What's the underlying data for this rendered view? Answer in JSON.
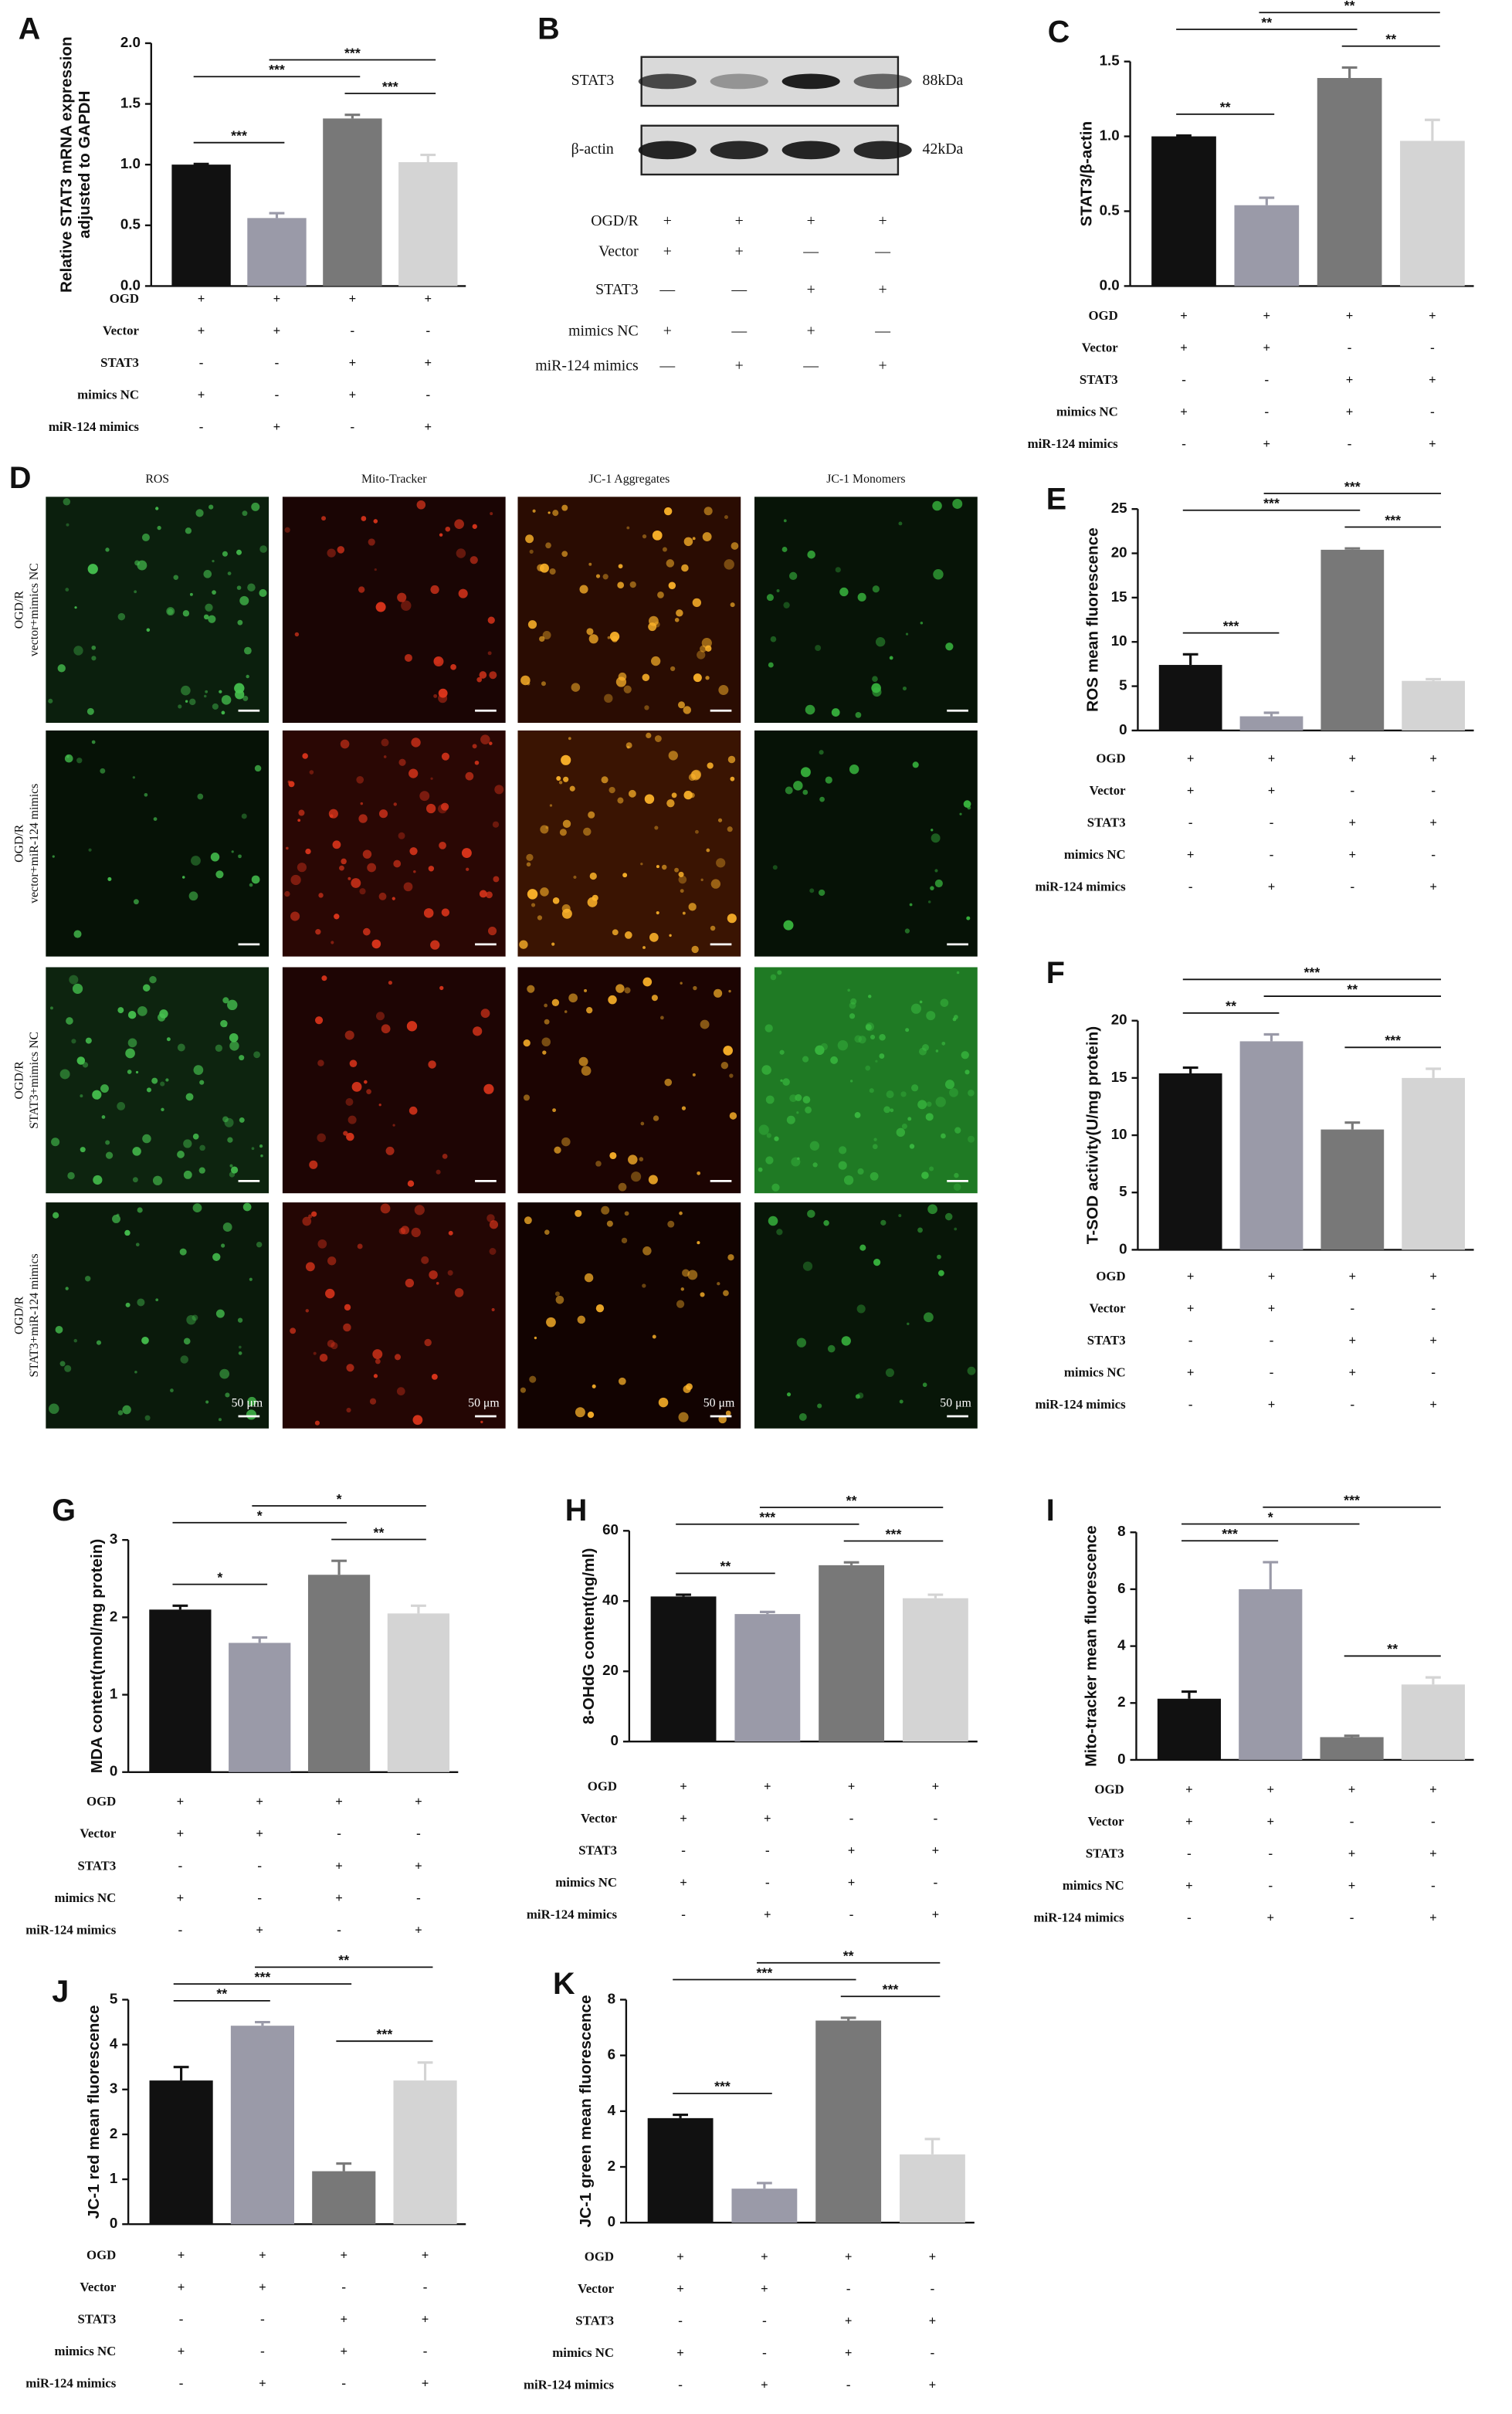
{
  "chart_data": [
    {
      "type": "bar",
      "letter": "A",
      "ylabel": [
        "Relative STAT3 mRNA expression",
        "adjusted to GAPDH"
      ],
      "categories": [
        null,
        null,
        null,
        null
      ],
      "values": [
        1.0,
        0.56,
        1.38,
        1.02
      ],
      "errors": [
        0.005,
        0.04,
        0.03,
        0.06
      ],
      "colors": [
        "#111111",
        "#9a9aa8",
        "#787878",
        "#d4d4d4"
      ],
      "ylim": [
        0,
        2.0
      ],
      "yticks": [
        {
          "value": 0,
          "label": "0.0"
        },
        0.5,
        {
          "value": 1,
          "label": "1.0"
        },
        1.5,
        {
          "value": 2,
          "label": "2.0"
        }
      ],
      "significance": [
        {
          "label": "***",
          "between": [
            0,
            2
          ]
        },
        {
          "label": "***",
          "between": [
            1,
            3
          ]
        },
        {
          "label": "***",
          "between": [
            2,
            3
          ]
        },
        {
          "label": "***",
          "between": [
            0,
            1
          ]
        }
      ]
    },
    {
      "type": "bar",
      "letter": "C",
      "ylabel": [
        "STAT3/β-actin"
      ],
      "categories": [
        null,
        null,
        null,
        null
      ],
      "values": [
        1.0,
        0.54,
        1.39,
        0.97
      ],
      "errors": [
        0.005,
        0.05,
        0.07,
        0.14
      ],
      "colors": [
        "#111111",
        "#9a9aa8",
        "#787878",
        "#d4d4d4"
      ],
      "ylim": [
        0,
        1.5
      ],
      "yticks": [
        {
          "value": 0,
          "label": "0.0"
        },
        0.5,
        {
          "value": 1,
          "label": "1.0"
        },
        1.5
      ],
      "significance": [
        {
          "label": "**",
          "between": [
            0,
            2
          ]
        },
        {
          "label": "**",
          "between": [
            1,
            3
          ]
        },
        {
          "label": "**",
          "between": [
            2,
            3
          ]
        },
        {
          "label": "**",
          "between": [
            0,
            1
          ]
        }
      ]
    },
    {
      "type": "bar",
      "letter": "E",
      "ylabel": [
        "ROS mean fluorescence"
      ],
      "categories": [
        null,
        null,
        null,
        null
      ],
      "values": [
        7.4,
        1.6,
        20.4,
        5.6
      ],
      "errors": [
        1.2,
        0.4,
        0.15,
        0.2
      ],
      "colors": [
        "#111111",
        "#9a9aa8",
        "#787878",
        "#d4d4d4"
      ],
      "ylim": [
        0,
        25
      ],
      "yticks": [
        0,
        5,
        10,
        15,
        20,
        25
      ],
      "significance": [
        {
          "label": "***",
          "between": [
            0,
            2
          ]
        },
        {
          "label": "***",
          "between": [
            1,
            3
          ]
        },
        {
          "label": "***",
          "between": [
            2,
            3
          ]
        },
        {
          "label": "***",
          "between": [
            0,
            1
          ]
        }
      ]
    },
    {
      "type": "bar",
      "letter": "F",
      "ylabel": [
        "T-SOD activity(U/mg protein)"
      ],
      "categories": [
        null,
        null,
        null,
        null
      ],
      "values": [
        15.4,
        18.2,
        10.5,
        15.0
      ],
      "errors": [
        0.5,
        0.6,
        0.6,
        0.8
      ],
      "colors": [
        "#111111",
        "#9a9aa8",
        "#787878",
        "#d4d4d4"
      ],
      "ylim": [
        0,
        20
      ],
      "yticks": [
        0,
        5,
        10,
        15,
        20
      ],
      "significance": [
        {
          "label": "***",
          "between": [
            0,
            3
          ]
        },
        {
          "label": "**",
          "between": [
            0,
            1
          ]
        },
        {
          "label": "**",
          "between": [
            1,
            3
          ]
        },
        {
          "label": "***",
          "between": [
            2,
            3
          ]
        }
      ]
    },
    {
      "type": "bar",
      "letter": "G",
      "ylabel": [
        "MDA content(nmol/mg protein)"
      ],
      "categories": [
        null,
        null,
        null,
        null
      ],
      "values": [
        2.1,
        1.67,
        2.55,
        2.05
      ],
      "errors": [
        0.05,
        0.07,
        0.18,
        0.1
      ],
      "colors": [
        "#111111",
        "#9a9aa8",
        "#787878",
        "#d4d4d4"
      ],
      "ylim": [
        0,
        3
      ],
      "yticks": [
        0,
        1,
        2,
        3
      ],
      "significance": [
        {
          "label": "*",
          "between": [
            0,
            2
          ]
        },
        {
          "label": "*",
          "between": [
            1,
            3
          ]
        },
        {
          "label": "**",
          "between": [
            2,
            3
          ]
        },
        {
          "label": "*",
          "between": [
            0,
            1
          ]
        }
      ]
    },
    {
      "type": "bar",
      "letter": "H",
      "ylabel": [
        "8-OHdG content(ng/ml)"
      ],
      "categories": [
        null,
        null,
        null,
        null
      ],
      "values": [
        41.3,
        36.3,
        50.2,
        40.8
      ],
      "errors": [
        0.5,
        0.6,
        0.8,
        1.0
      ],
      "colors": [
        "#111111",
        "#9a9aa8",
        "#787878",
        "#d4d4d4"
      ],
      "ylim": [
        0,
        60
      ],
      "yticks": [
        0,
        20,
        40,
        60
      ],
      "significance": [
        {
          "label": "***",
          "between": [
            0,
            2
          ]
        },
        {
          "label": "**",
          "between": [
            1,
            3
          ]
        },
        {
          "label": "***",
          "between": [
            2,
            3
          ]
        },
        {
          "label": "**",
          "between": [
            0,
            1
          ]
        }
      ]
    },
    {
      "type": "bar",
      "letter": "I",
      "ylabel": [
        "Mito-tracker mean fluorescence"
      ],
      "categories": [
        null,
        null,
        null,
        null
      ],
      "values": [
        2.15,
        6.0,
        0.8,
        2.65
      ],
      "errors": [
        0.25,
        0.95,
        0.05,
        0.25
      ],
      "colors": [
        "#111111",
        "#9a9aa8",
        "#787878",
        "#d4d4d4"
      ],
      "ylim": [
        0,
        8
      ],
      "yticks": [
        0,
        2,
        4,
        6,
        8
      ],
      "significance": [
        {
          "label": "*",
          "between": [
            0,
            2
          ]
        },
        {
          "label": "***",
          "between": [
            0,
            1
          ]
        },
        {
          "label": "***",
          "between": [
            1,
            3
          ]
        },
        {
          "label": "**",
          "between": [
            2,
            3
          ]
        }
      ]
    },
    {
      "type": "bar",
      "letter": "J",
      "ylabel": [
        "JC-1 red mean fluorescence"
      ],
      "categories": [
        null,
        null,
        null,
        null
      ],
      "values": [
        3.2,
        4.42,
        1.18,
        3.2
      ],
      "errors": [
        0.3,
        0.08,
        0.17,
        0.4
      ],
      "colors": [
        "#111111",
        "#9a9aa8",
        "#787878",
        "#d4d4d4"
      ],
      "ylim": [
        0,
        5
      ],
      "yticks": [
        0,
        1,
        2,
        3,
        4,
        5
      ],
      "significance": [
        {
          "label": "***",
          "between": [
            0,
            2
          ]
        },
        {
          "label": "**",
          "between": [
            0,
            1
          ]
        },
        {
          "label": "**",
          "between": [
            1,
            3
          ]
        },
        {
          "label": "***",
          "between": [
            2,
            3
          ]
        }
      ]
    },
    {
      "type": "bar",
      "letter": "K",
      "ylabel": [
        "JC-1 green mean fluorescence"
      ],
      "categories": [
        null,
        null,
        null,
        null
      ],
      "values": [
        3.75,
        1.22,
        7.25,
        2.45
      ],
      "errors": [
        0.12,
        0.2,
        0.1,
        0.55
      ],
      "colors": [
        "#111111",
        "#9a9aa8",
        "#787878",
        "#d4d4d4"
      ],
      "ylim": [
        0,
        8
      ],
      "yticks": [
        0,
        2,
        4,
        6,
        8
      ],
      "significance": [
        {
          "label": "***",
          "between": [
            0,
            2
          ]
        },
        {
          "label": "***",
          "between": [
            0,
            1
          ]
        },
        {
          "label": "**",
          "between": [
            1,
            3
          ]
        },
        {
          "label": "***",
          "between": [
            2,
            3
          ]
        }
      ]
    }
  ],
  "conditions": {
    "rows": [
      "OGD",
      "Vector",
      "STAT3",
      "mimics NC",
      "miR-124 mimics"
    ],
    "signs": [
      [
        "+",
        "+",
        "+",
        "+"
      ],
      [
        "+",
        "+",
        "-",
        "-"
      ],
      [
        "-",
        "-",
        "+",
        "+"
      ],
      [
        "+",
        "-",
        "+",
        "-"
      ],
      [
        "-",
        "+",
        "-",
        "+"
      ]
    ]
  },
  "blot": {
    "letter": "B",
    "bands": [
      {
        "name": "STAT3",
        "size": "88kDa"
      },
      {
        "name": "β-actin",
        "size": "42kDa"
      }
    ],
    "rows": [
      "OGD/R",
      "Vector",
      "STAT3",
      "mimics NC",
      "miR-124 mimics"
    ],
    "signs": [
      [
        "+",
        "+",
        "+",
        "+"
      ],
      [
        "+",
        "+",
        "—",
        "—"
      ],
      [
        "—",
        "—",
        "+",
        "+"
      ],
      [
        "+",
        "—",
        "+",
        "—"
      ],
      [
        "—",
        "+",
        "—",
        "+"
      ]
    ]
  },
  "microscopy": {
    "letter": "D",
    "columns": [
      "ROS",
      "Mito-Tracker",
      "JC-1 Aggregates",
      "JC-1 Monomers"
    ],
    "rows": [
      [
        "OGD/R",
        "vector+mimics NC"
      ],
      [
        "OGD/R",
        "vector+miR-124 mimics"
      ],
      [
        "OGD/R",
        "STAT3+mimics NC"
      ],
      [
        "OGD/R",
        "STAT3+miR-124 mimics"
      ]
    ],
    "scale_bar": "50 μm"
  }
}
